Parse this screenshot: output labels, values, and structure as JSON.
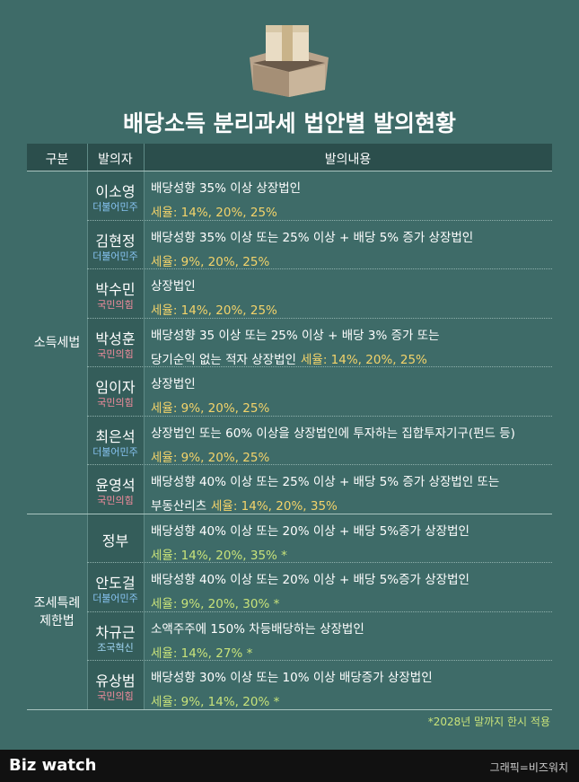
{
  "title": "배당소득 분리과세 법안별 발의현황",
  "header": [
    "구분",
    "발의자",
    "발의내용"
  ],
  "groups": [
    {
      "label": [
        "소득세법"
      ],
      "rows": [
        {
          "name": "이소영",
          "party": "더불어민주",
          "party_color": "#86c2f0",
          "desc": [
            "배당성향 35% 이상 상장법인"
          ],
          "rate": "세율: 14%, 20%, 25%",
          "rate_color": "#f3d36a"
        },
        {
          "name": "김현정",
          "party": "더불어민주",
          "party_color": "#86c2f0",
          "desc": [
            "배당성향 35% 이상 또는 25% 이상 + 배당 5% 증가 상장법인"
          ],
          "rate": "세율: 9%, 20%, 25%",
          "rate_color": "#f3d36a"
        },
        {
          "name": "박수민",
          "party": "국민의힘",
          "party_color": "#f28c9c",
          "desc": [
            "상장법인"
          ],
          "rate": "세율: 14%, 20%, 25%",
          "rate_color": "#f3d36a"
        },
        {
          "name": "박성훈",
          "party": "국민의힘",
          "party_color": "#f28c9c",
          "desc": [
            "배당성향 35 이상 또는 25% 이상 + 배당 3% 증가 또는",
            "당기순익 없는 적자 상장법인"
          ],
          "rate": "세율: 14%, 20%, 25%",
          "rate_color": "#f3d36a"
        },
        {
          "name": "임이자",
          "party": "국민의힘",
          "party_color": "#f28c9c",
          "desc": [
            "상장법인"
          ],
          "rate": "세율: 9%, 20%, 25%",
          "rate_color": "#f3d36a"
        },
        {
          "name": "최은석",
          "party": "더불어민주",
          "party_color": "#86c2f0",
          "desc": [
            "상장법인 또는 60% 이상을 상장법인에 투자하는 집합투자기구(펀드 등)"
          ],
          "rate": "세율: 9%, 20%, 25%",
          "rate_color": "#f3d36a"
        },
        {
          "name": "윤영석",
          "party": "국민의힘",
          "party_color": "#f28c9c",
          "desc": [
            "배당성향 40% 이상 또는 25% 이상 + 배당 5% 증가 상장법인 또는",
            "부동산리츠"
          ],
          "rate": "세율: 14%, 20%, 35%",
          "rate_color": "#f3d36a"
        }
      ]
    },
    {
      "label": [
        "조세특례",
        "제한법"
      ],
      "rows": [
        {
          "name": "정부",
          "desc": [
            "배당성향 40% 이상 또는 20% 이상 + 배당 5%증가 상장법인"
          ],
          "rate": "세율: 14%, 20%, 35% *",
          "rate_color": "#c8e27a"
        },
        {
          "name": "안도걸",
          "party": "더불어민주",
          "party_color": "#86c2f0",
          "desc": [
            "배당성향 40% 이상 또는 20% 이상 + 배당 5%증가 상장법인"
          ],
          "rate": "세율: 9%, 20%, 30% *",
          "rate_color": "#c8e27a"
        },
        {
          "name": "차규근",
          "party": "조국혁신",
          "party_color": "#9fd4f2",
          "desc": [
            "소액주주에 150% 차등배당하는 상장법인"
          ],
          "rate": "세율: 14%, 27% *",
          "rate_color": "#c8e27a"
        },
        {
          "name": "유상범",
          "party": "국민의힘",
          "party_color": "#f28c9c",
          "desc": [
            "배당성향 30% 이상 또는 10% 이상 배당증가 상장법인"
          ],
          "rate": "세율: 9%, 14%, 20% *",
          "rate_color": "#c8e27a"
        }
      ]
    }
  ],
  "footnote": "*2028년 말까지 한시 적용",
  "brand": "Biz watch",
  "credit": "그래픽=비즈워치"
}
